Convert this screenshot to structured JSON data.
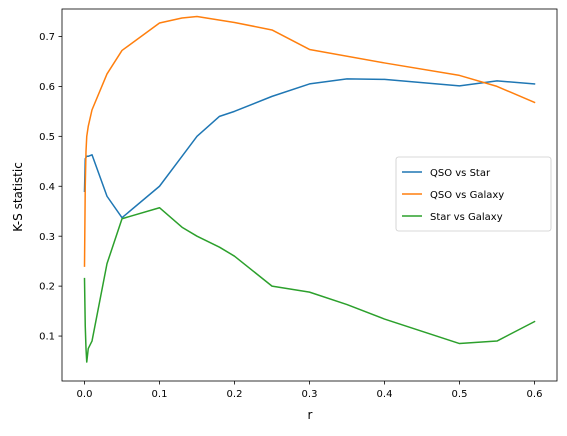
{
  "chart_data": {
    "type": "line",
    "title": "",
    "xlabel": "r",
    "ylabel": "K-S statistic",
    "xlim": [
      -0.03,
      0.63
    ],
    "ylim": [
      0.01,
      0.755
    ],
    "xticks": [
      0.0,
      0.1,
      0.2,
      0.3,
      0.4,
      0.5,
      0.6
    ],
    "xtick_labels": [
      "0.0",
      "0.1",
      "0.2",
      "0.3",
      "0.4",
      "0.5",
      "0.6"
    ],
    "yticks": [
      0.1,
      0.2,
      0.3,
      0.4,
      0.5,
      0.6,
      0.7
    ],
    "ytick_labels": [
      "0.1",
      "0.2",
      "0.3",
      "0.4",
      "0.5",
      "0.6",
      "0.7"
    ],
    "grid": false,
    "legend": {
      "placement": "center-right",
      "entries": [
        "QSO vs Star",
        "QSO vs Galaxy",
        "Star vs Galaxy"
      ]
    },
    "series": [
      {
        "name": "QSO vs Star",
        "color": "#1f77b4",
        "x": [
          0.0,
          0.001,
          0.003,
          0.005,
          0.01,
          0.03,
          0.05,
          0.1,
          0.13,
          0.15,
          0.18,
          0.2,
          0.25,
          0.3,
          0.35,
          0.4,
          0.5,
          0.55,
          0.6
        ],
        "y": [
          0.39,
          0.455,
          0.46,
          0.46,
          0.463,
          0.38,
          0.337,
          0.4,
          0.46,
          0.5,
          0.54,
          0.55,
          0.58,
          0.605,
          0.615,
          0.614,
          0.601,
          0.611,
          0.605
        ]
      },
      {
        "name": "QSO vs Galaxy",
        "color": "#ff7f0e",
        "x": [
          0.0,
          0.001,
          0.002,
          0.003,
          0.005,
          0.01,
          0.03,
          0.05,
          0.1,
          0.13,
          0.15,
          0.2,
          0.25,
          0.3,
          0.4,
          0.5,
          0.55,
          0.6
        ],
        "y": [
          0.24,
          0.4,
          0.47,
          0.5,
          0.52,
          0.553,
          0.625,
          0.672,
          0.727,
          0.737,
          0.74,
          0.728,
          0.713,
          0.674,
          0.647,
          0.622,
          0.6,
          0.568
        ]
      },
      {
        "name": "Star vs Galaxy",
        "color": "#2ca02c",
        "x": [
          0.0,
          0.001,
          0.002,
          0.003,
          0.005,
          0.01,
          0.03,
          0.05,
          0.1,
          0.13,
          0.15,
          0.18,
          0.2,
          0.25,
          0.3,
          0.35,
          0.4,
          0.5,
          0.55,
          0.6
        ],
        "y": [
          0.215,
          0.12,
          0.075,
          0.048,
          0.075,
          0.09,
          0.245,
          0.335,
          0.357,
          0.318,
          0.3,
          0.278,
          0.26,
          0.2,
          0.188,
          0.163,
          0.134,
          0.085,
          0.09,
          0.129
        ]
      }
    ]
  }
}
